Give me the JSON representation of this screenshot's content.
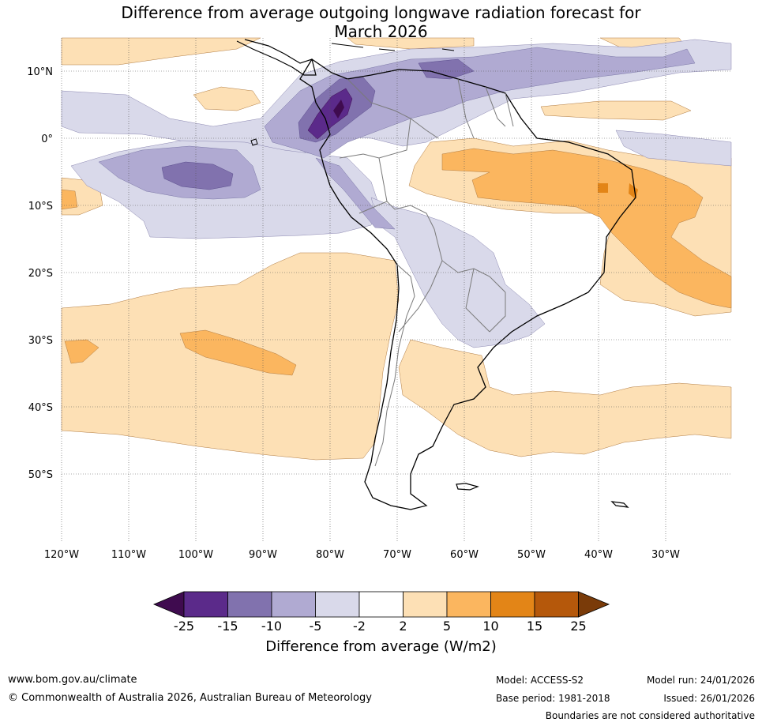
{
  "title_line1": "Difference from average outgoing longwave radiation forecast for",
  "title_line2": "March 2026",
  "lat_labels": [
    "10°N",
    "0°",
    "10°S",
    "20°S",
    "30°S",
    "40°S",
    "50°S"
  ],
  "lon_labels": [
    "120°W",
    "110°W",
    "100°W",
    "90°W",
    "80°W",
    "70°W",
    "60°W",
    "50°W",
    "40°W",
    "30°W"
  ],
  "colorbar": {
    "ticks": [
      "-25",
      "-15",
      "-10",
      "-5",
      "-2",
      "2",
      "5",
      "10",
      "15",
      "25"
    ],
    "colors": [
      "#3f0b4f",
      "#5b2a8a",
      "#8172ae",
      "#b0aad2",
      "#d9d9ea",
      "#ffffff",
      "#fde0b5",
      "#fbb65f",
      "#e38517",
      "#b5580b",
      "#7a3b09"
    ],
    "title": "Difference from average (W/m2)"
  },
  "footer": {
    "website": "www.bom.gov.au/climate",
    "copyright": "© Commonwealth of Australia 2026, Australian Bureau of Meteorology",
    "model": "Model: ACCESS-S2",
    "base_period": "Base period: 1981-2018",
    "model_run": "Model run: 24/01/2026",
    "issued": "Issued: 26/01/2026",
    "disclaimer": "Boundaries are not considered authoritative"
  }
}
